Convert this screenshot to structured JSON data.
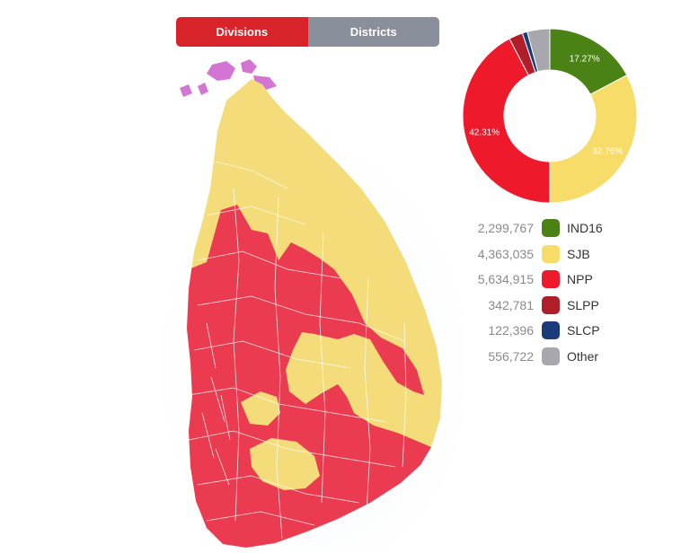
{
  "toggle": {
    "divisions_label": "Divisions",
    "districts_label": "Districts",
    "active": "divisions",
    "active_color": "#d8232b",
    "inactive_color": "#8a8f9c"
  },
  "map": {
    "region": "Sri Lanka",
    "fill_colors": {
      "npp": "#ea3b51",
      "sjb": "#f5dc7a",
      "tamil_parties": "#d575d3"
    }
  },
  "chart_data": {
    "type": "pie",
    "donut": true,
    "slices": [
      {
        "label": "IND16",
        "value": 2299767,
        "percent_label": "17.27%",
        "color": "#4a8216"
      },
      {
        "label": "SJB",
        "value": 4363035,
        "percent_label": "32.76%",
        "color": "#f8dc6a"
      },
      {
        "label": "NPP",
        "value": 5634915,
        "percent_label": "42.31%",
        "color": "#ee1a2b"
      },
      {
        "label": "SLPP",
        "value": 342781,
        "percent_label": "",
        "color": "#b01e2a"
      },
      {
        "label": "SLCP",
        "value": 122396,
        "percent_label": "",
        "color": "#1b3a7a"
      },
      {
        "label": "Other",
        "value": 556722,
        "percent_label": "",
        "color": "#a7a7ad"
      }
    ]
  },
  "legend": [
    {
      "value": "2,299,767",
      "label": "IND16",
      "color": "#4a8216"
    },
    {
      "value": "4,363,035",
      "label": "SJB",
      "color": "#f8dc6a"
    },
    {
      "value": "5,634,915",
      "label": "NPP",
      "color": "#ee1a2b"
    },
    {
      "value": "342,781",
      "label": "SLPP",
      "color": "#b01e2a"
    },
    {
      "value": "122,396",
      "label": "SLCP",
      "color": "#1b3a7a"
    },
    {
      "value": "556,722",
      "label": "Other",
      "color": "#a7a7ad"
    }
  ]
}
